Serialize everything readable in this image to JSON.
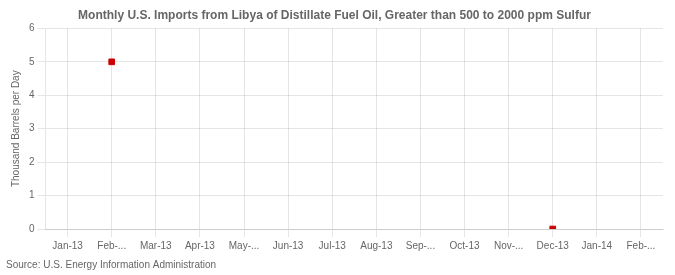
{
  "chart_data": {
    "type": "scatter",
    "title": "Monthly U.S. Imports from Libya of Distillate Fuel Oil, Greater than 500 to 2000 ppm Sulfur",
    "y_label": "Thousand Barrels per Day",
    "annotation": "Source: U.S. Energy Information Administration",
    "categories": [
      "Jan-13",
      "Feb-...",
      "Mar-13",
      "Apr-13",
      "May-...",
      "Jun-13",
      "Jul-13",
      "Aug-13",
      "Sep-...",
      "Oct-13",
      "Nov-...",
      "Dec-13",
      "Jan-14",
      "Feb-..."
    ],
    "values": [
      null,
      5.0,
      null,
      null,
      null,
      null,
      null,
      null,
      null,
      null,
      null,
      0.0,
      null,
      null
    ],
    "color": "#cc0000",
    "marker": "square",
    "ylim": [
      0,
      6
    ],
    "yticks": [
      0,
      1,
      2,
      3,
      4,
      5,
      6
    ],
    "grid": true
  }
}
